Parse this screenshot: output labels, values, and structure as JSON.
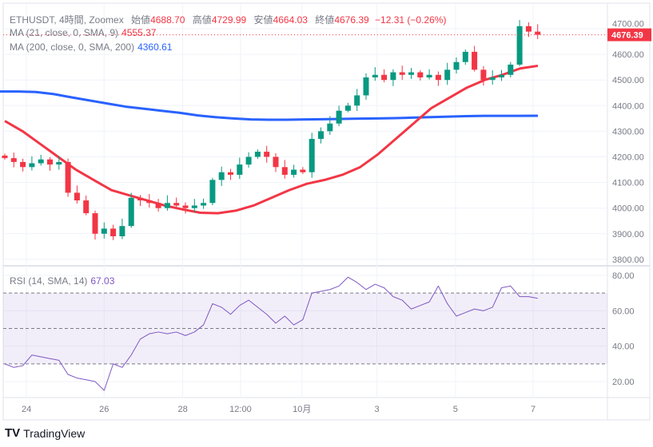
{
  "header": {
    "symbol": "ETHUSDT, 4時間, Zoomex",
    "open_label": "始値",
    "open": "4688.70",
    "high_label": "高値",
    "high": "4729.99",
    "low_label": "安値",
    "low": "4664.03",
    "close_label": "終値",
    "close": "4676.39",
    "change": "−12.31 (−0.26%)"
  },
  "indicators": {
    "ma21_label": "MA (21, close, 0, SMA, 9)",
    "ma21_value": "4555.37",
    "ma200_label": "MA (200, close, 0, SMA, 200)",
    "ma200_value": "4360.61",
    "rsi_label": "RSI (14, SMA, 14)",
    "rsi_value": "67.03"
  },
  "colors": {
    "up": "#089981",
    "down": "#f23645",
    "ma21": "#f23645",
    "ma200": "#2962ff",
    "rsi": "#7e57c2"
  },
  "footer": {
    "brand": "TradingView"
  },
  "chart_data": {
    "type": "candlestick",
    "price_axis": {
      "ticks": [
        4700,
        4600,
        4500,
        4400,
        4300,
        4200,
        4100,
        4000,
        3900,
        3800
      ],
      "tick_labels": [
        "4700.00",
        "4600.00",
        "4500.00",
        "4400.00",
        "4300.00",
        "4200.00",
        "4100.00",
        "4000.00",
        "3900.00",
        "3800.00"
      ],
      "range": [
        3790,
        4735
      ],
      "last_price": "4676.39"
    },
    "rsi_axis": {
      "ticks": [
        80,
        60,
        40,
        20
      ],
      "tick_labels": [
        "80.00",
        "60.00",
        "40.00",
        "20.00"
      ],
      "levels": [
        70,
        50,
        30
      ]
    },
    "x_labels": [
      {
        "label": "24",
        "index": 2.4
      },
      {
        "label": "26",
        "index": 11
      },
      {
        "label": "28",
        "index": 19.7
      },
      {
        "label": "12:00",
        "index": 26.1
      },
      {
        "label": "10月",
        "index": 32.9
      },
      {
        "label": "3",
        "index": 41.2
      },
      {
        "label": "5",
        "index": 49.9
      },
      {
        "label": "7",
        "index": 58.5
      }
    ],
    "closes": [
      4195,
      4180,
      4160,
      4175,
      4190,
      4170,
      4180,
      4060,
      4030,
      3980,
      3900,
      3920,
      3890,
      3930,
      4040,
      4030,
      4020,
      4000,
      4020,
      4010,
      4000,
      4010,
      4020,
      4110,
      4140,
      4130,
      4170,
      4200,
      4220,
      4200,
      4160,
      4130,
      4150,
      4140,
      4270,
      4300,
      4330,
      4380,
      4400,
      4440,
      4510,
      4520,
      4500,
      4530,
      4520,
      4530,
      4510,
      4520,
      4500,
      4540,
      4570,
      4610,
      4540,
      4500,
      4510,
      4520,
      4560,
      4710,
      4688.7,
      4676.39
    ],
    "first_open": 4205,
    "ma21": [
      4340,
      4300,
      4250,
      4200,
      4150,
      4110,
      4070,
      4050,
      4030,
      4010,
      3995,
      3982,
      3980,
      3990,
      4010,
      4040,
      4070,
      4095,
      4110,
      4130,
      4160,
      4210,
      4270,
      4330,
      4390,
      4430,
      4470,
      4500,
      4520,
      4545,
      4555.37
    ],
    "ma200": [
      4455,
      4455,
      4453,
      4445,
      4432,
      4420,
      4408,
      4396,
      4388,
      4380,
      4372,
      4362,
      4355,
      4350,
      4346,
      4345,
      4345,
      4346,
      4347,
      4348,
      4349,
      4350,
      4351,
      4353,
      4355,
      4357,
      4359,
      4360,
      4360,
      4360,
      4360.61
    ],
    "rsi": [
      30,
      28,
      29,
      35,
      34,
      33,
      32,
      24,
      22,
      21,
      20,
      15,
      30,
      28,
      35,
      44,
      47,
      48,
      47,
      48,
      46,
      48,
      52,
      64,
      62,
      58,
      63,
      66,
      62,
      58,
      53,
      57,
      52,
      55,
      70,
      71,
      72,
      74,
      79,
      76,
      72,
      75,
      73,
      68,
      66,
      61,
      63,
      65,
      74,
      64,
      57,
      59,
      61,
      60,
      62,
      73,
      74,
      68,
      68,
      67.03
    ]
  }
}
